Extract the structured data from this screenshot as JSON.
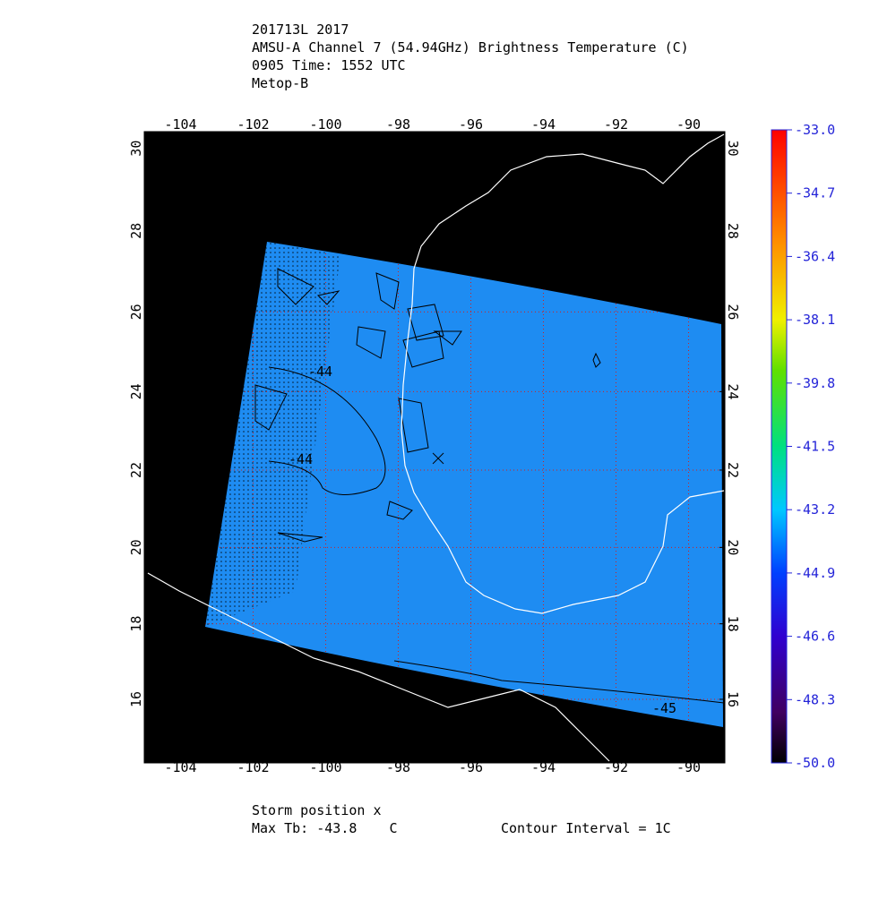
{
  "header": {
    "lines": [
      "201713L 2017",
      "AMSU-A Channel 7 (54.94GHz) Brightness Temperature (C)",
      "0905 Time: 1552 UTC",
      "Metop-B"
    ]
  },
  "map": {
    "lonlim": [
      -105,
      -89
    ],
    "latlim": [
      14.3,
      30.4
    ],
    "lonticks": [
      -104,
      -102,
      -100,
      -98,
      -96,
      -94,
      -92,
      -90
    ],
    "latticks": [
      16,
      18,
      20,
      22,
      24,
      26,
      28,
      30
    ],
    "contour_labels": [
      "-44",
      "-44",
      "-45"
    ],
    "storm": {
      "lon": -96.9,
      "lat": 22.3
    }
  },
  "colorbar": {
    "lim": [
      -50,
      -33
    ],
    "ticks": [
      {
        "value": -33,
        "label": "-33.0"
      },
      -34.7,
      -36.4,
      -38.1,
      -39.8,
      -41.5,
      -43.2,
      -44.9,
      -46.6,
      -48.3,
      {
        "value": -50,
        "label": "-50.0"
      }
    ]
  },
  "footer": {
    "storm": "Storm position x",
    "max_tb": "Max Tb: -43.8    C",
    "contour": "Contour Interval = 1C"
  }
}
